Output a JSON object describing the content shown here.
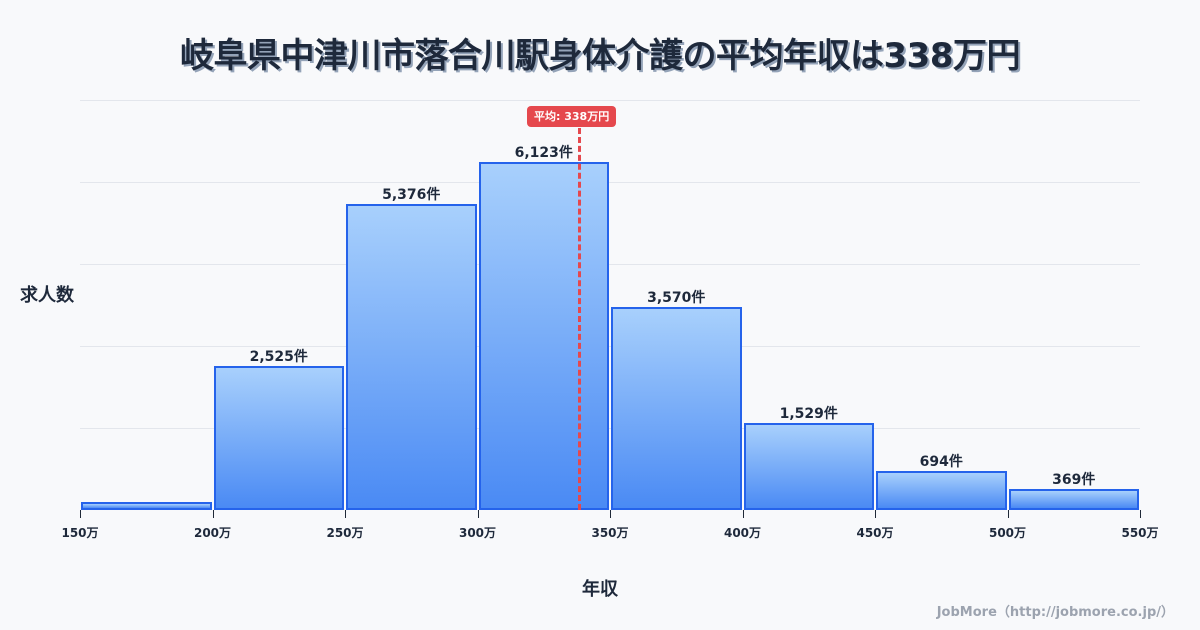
{
  "title": "岐阜県中津川市落合川駅身体介護の平均年収は338万円",
  "axes": {
    "ylabel": "求人数",
    "xlabel": "年収"
  },
  "average": {
    "label": "平均: 338万円",
    "value": 338,
    "color": "#e5484d"
  },
  "credit": "JobMore（http://jobmore.co.jp/）",
  "bars": [
    {
      "range": "150万-200万",
      "count": 140,
      "label": ""
    },
    {
      "range": "200万-250万",
      "count": 2525,
      "label": "2,525件"
    },
    {
      "range": "250万-300万",
      "count": 5376,
      "label": "5,376件"
    },
    {
      "range": "300万-350万",
      "count": 6123,
      "label": "6,123件"
    },
    {
      "range": "350万-400万",
      "count": 3570,
      "label": "3,570件"
    },
    {
      "range": "400万-450万",
      "count": 1529,
      "label": "1,529件"
    },
    {
      "range": "450万-500万",
      "count": 694,
      "label": "694件"
    },
    {
      "range": "500万-550万",
      "count": 369,
      "label": "369件"
    }
  ],
  "ticks": [
    "150万",
    "200万",
    "250万",
    "300万",
    "350万",
    "400万",
    "450万",
    "500万",
    "550万"
  ],
  "colors": {
    "bar_border": "#2563eb",
    "bar_top": "#a8d0fc",
    "bar_bottom": "#4a8af4",
    "background": "#f8f9fb"
  },
  "chart_data": {
    "type": "bar",
    "title": "岐阜県中津川市落合川駅身体介護の平均年収は338万円",
    "xlabel": "年収",
    "ylabel": "求人数",
    "categories": [
      "150万-200万",
      "200万-250万",
      "250万-300万",
      "300万-350万",
      "350万-400万",
      "400万-450万",
      "450万-500万",
      "500万-550万"
    ],
    "values": [
      140,
      2525,
      5376,
      6123,
      3570,
      1529,
      694,
      369
    ],
    "x_ticks": [
      "150万",
      "200万",
      "250万",
      "300万",
      "350万",
      "400万",
      "450万",
      "500万",
      "550万"
    ],
    "annotations": [
      {
        "type": "vline",
        "x": 338,
        "label": "平均: 338万円"
      }
    ],
    "grid": true,
    "legend": "none"
  }
}
